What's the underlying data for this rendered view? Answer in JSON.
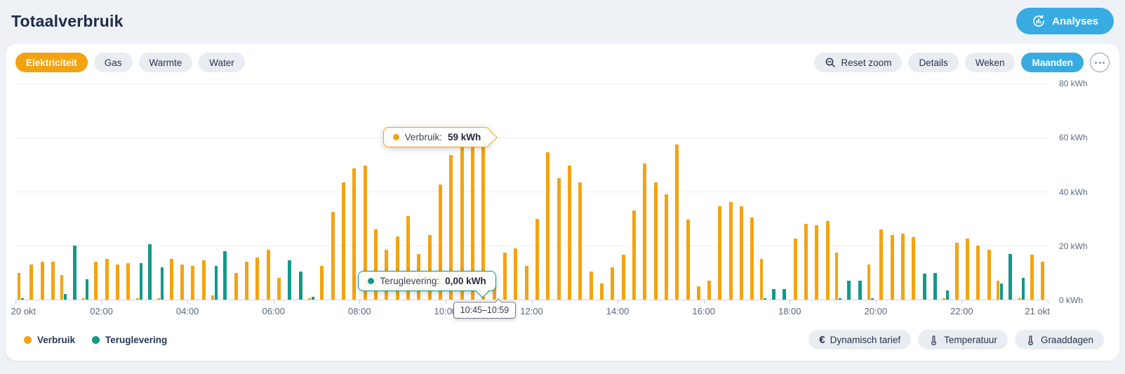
{
  "page": {
    "title": "Totaalverbruik"
  },
  "header": {
    "analyses_label": "Analyses"
  },
  "toolbar": {
    "tabs": [
      {
        "label": "Elektriciteit",
        "active": true
      },
      {
        "label": "Gas",
        "active": false
      },
      {
        "label": "Warmte",
        "active": false
      },
      {
        "label": "Water",
        "active": false
      }
    ],
    "actions": {
      "reset_zoom": "Reset zoom",
      "details": "Details",
      "weeks": "Weken",
      "months": "Maanden"
    }
  },
  "chart_data": {
    "type": "bar",
    "unit": "kWh",
    "interval_minutes": 15,
    "ylim": [
      0,
      80
    ],
    "y_tick_labels": [
      "0 kWh",
      "20 kWh",
      "40 kWh",
      "60 kWh",
      "80 kWh"
    ],
    "x_tick_labels": [
      "20 okt",
      "02:00",
      "04:00",
      "06:00",
      "08:00",
      "10:00",
      "12:00",
      "14:00",
      "16:00",
      "18:00",
      "20:00",
      "22:00",
      "21 okt"
    ],
    "categories": [
      "00:00",
      "00:15",
      "00:30",
      "00:45",
      "01:00",
      "01:15",
      "01:30",
      "01:45",
      "02:00",
      "02:15",
      "02:30",
      "02:45",
      "03:00",
      "03:15",
      "03:30",
      "03:45",
      "04:00",
      "04:15",
      "04:30",
      "04:45",
      "05:00",
      "05:15",
      "05:30",
      "05:45",
      "06:00",
      "06:15",
      "06:30",
      "06:45",
      "07:00",
      "07:15",
      "07:30",
      "07:45",
      "08:00",
      "08:15",
      "08:30",
      "08:45",
      "09:00",
      "09:15",
      "09:30",
      "09:45",
      "10:00",
      "10:15",
      "10:30",
      "10:45",
      "11:00",
      "11:15",
      "11:30",
      "11:45",
      "12:00",
      "12:15",
      "12:30",
      "12:45",
      "13:00",
      "13:15",
      "13:30",
      "13:45",
      "14:00",
      "14:15",
      "14:30",
      "14:45",
      "15:00",
      "15:15",
      "15:30",
      "15:45",
      "16:00",
      "16:15",
      "16:30",
      "16:45",
      "17:00",
      "17:15",
      "17:30",
      "17:45",
      "18:00",
      "18:15",
      "18:30",
      "18:45",
      "19:00",
      "19:15",
      "19:30",
      "19:45",
      "20:00",
      "20:15",
      "20:30",
      "20:45",
      "21:00",
      "21:15",
      "21:30",
      "21:45",
      "22:00",
      "22:15",
      "22:30",
      "22:45",
      "23:00",
      "23:15",
      "23:30",
      "23:45"
    ],
    "series": [
      {
        "name": "Verbruik",
        "color": "#f3a311",
        "values": [
          10,
          13,
          14,
          14,
          9,
          0,
          0.5,
          14,
          15,
          13,
          13.5,
          0.5,
          0,
          0.5,
          15,
          13,
          12.5,
          14.5,
          1.5,
          0,
          10,
          14,
          15.5,
          18.5,
          8,
          0,
          0,
          0.5,
          12.5,
          32.5,
          43.5,
          48.5,
          49.5,
          26,
          18.5,
          23.5,
          31,
          17,
          24,
          42.5,
          53.5,
          58,
          63,
          59,
          5.5,
          17.5,
          19,
          12.5,
          30,
          54.5,
          45,
          49.5,
          43.5,
          10.5,
          6,
          12,
          16.5,
          33,
          50.5,
          43.5,
          39,
          57.5,
          29.5,
          5,
          7,
          34.5,
          36,
          34.5,
          30.5,
          15,
          0,
          0,
          22.5,
          28,
          27.5,
          29,
          17.5,
          0,
          0,
          13,
          26,
          24,
          24.5,
          23,
          0,
          0,
          0.5,
          21,
          22.5,
          20,
          18.5,
          7,
          0,
          0.5,
          16.5,
          14
        ]
      },
      {
        "name": "Teruglevering",
        "color": "#13988a",
        "values": [
          0.5,
          0,
          0,
          0,
          2,
          20,
          7.5,
          0,
          0,
          0,
          0,
          13.5,
          20.5,
          12,
          0,
          0,
          0,
          0,
          12.5,
          18,
          0,
          0,
          0,
          0,
          0,
          14.5,
          10.5,
          1,
          0,
          0,
          0,
          0,
          0,
          0,
          0,
          0,
          0,
          0,
          0,
          0,
          0,
          0,
          0,
          0,
          0,
          0,
          0,
          0,
          0,
          0,
          0,
          0,
          0,
          0,
          0,
          0,
          0,
          0,
          0,
          0,
          0,
          0,
          0,
          0,
          0,
          0,
          0,
          0,
          0,
          0.5,
          4,
          4,
          0,
          0,
          0,
          0,
          0.5,
          7,
          7,
          0.5,
          0,
          0,
          0,
          0,
          9.5,
          10,
          3.5,
          0,
          0,
          0,
          0,
          6,
          17,
          8,
          0,
          0
        ]
      }
    ],
    "highlighted_slot": {
      "index": 43,
      "time_range": "10:45–10:59",
      "verbruik_kwh": 59,
      "teruglevering_kwh": 0
    }
  },
  "tooltips": {
    "verbruik": {
      "label": "Verbruik:",
      "value": "59 kWh"
    },
    "teruglevering": {
      "label": "Teruglevering:",
      "value": "0,00 kWh"
    },
    "time_range": "10:45–10:59"
  },
  "legend": [
    {
      "label": "Verbruik",
      "color": "#f3a311"
    },
    {
      "label": "Teruglevering",
      "color": "#13988a"
    }
  ],
  "footer_actions": [
    {
      "label": "Dynamisch tarief",
      "icon": "euro"
    },
    {
      "label": "Temperatuur",
      "icon": "thermometer"
    },
    {
      "label": "Graaddagen",
      "icon": "thermometer"
    }
  ]
}
